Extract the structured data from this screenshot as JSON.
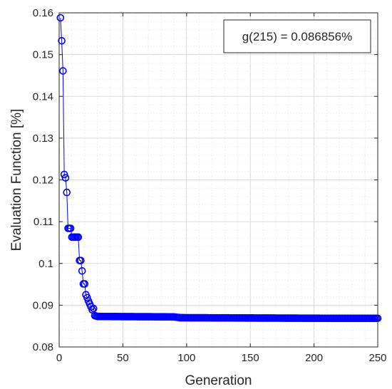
{
  "chart_data": {
    "type": "line",
    "title": "",
    "xlabel": "Generation",
    "ylabel": "Evaluation Function [%]",
    "xlim": [
      0,
      250
    ],
    "ylim": [
      0.08,
      0.16
    ],
    "x_ticks": [
      0,
      50,
      100,
      150,
      200,
      250
    ],
    "y_ticks": [
      0.08,
      0.09,
      0.1,
      0.11,
      0.12,
      0.13,
      0.14,
      0.15,
      0.16
    ],
    "x_tick_labels": [
      "0",
      "50",
      "100",
      "150",
      "200",
      "250"
    ],
    "y_tick_labels": [
      "0.08",
      "0.09",
      "0.1",
      "0.11",
      "0.12",
      "0.13",
      "0.14",
      "0.15",
      "0.16"
    ],
    "grid": true,
    "marker": "circle",
    "line_color": "#0000ff",
    "annotation": "g(215) = 0.086856%",
    "annotation_position": "top-right",
    "series": [
      {
        "key_points": [
          {
            "x": 1,
            "y": 0.1588
          },
          {
            "x": 2,
            "y": 0.1533
          },
          {
            "x": 3,
            "y": 0.1461
          },
          {
            "x": 4,
            "y": 0.1213
          },
          {
            "x": 5,
            "y": 0.1205
          },
          {
            "x": 6,
            "y": 0.117
          },
          {
            "x": 7,
            "y": 0.1084
          },
          {
            "x": 8,
            "y": 0.1084
          },
          {
            "x": 9,
            "y": 0.1084
          },
          {
            "x": 10,
            "y": 0.1063
          },
          {
            "x": 11,
            "y": 0.1063
          },
          {
            "x": 12,
            "y": 0.1063
          },
          {
            "x": 13,
            "y": 0.1063
          },
          {
            "x": 14,
            "y": 0.1063
          },
          {
            "x": 15,
            "y": 0.1063
          },
          {
            "x": 16,
            "y": 0.1007
          },
          {
            "x": 17,
            "y": 0.1007
          },
          {
            "x": 18,
            "y": 0.0982
          },
          {
            "x": 19,
            "y": 0.0951
          },
          {
            "x": 20,
            "y": 0.0951
          },
          {
            "x": 21,
            "y": 0.0925
          },
          {
            "x": 22,
            "y": 0.0918
          },
          {
            "x": 23,
            "y": 0.091
          },
          {
            "x": 24,
            "y": 0.0903
          },
          {
            "x": 25,
            "y": 0.0896
          },
          {
            "x": 26,
            "y": 0.0889
          },
          {
            "x": 27,
            "y": 0.0892
          },
          {
            "x": 28,
            "y": 0.0875
          },
          {
            "x": 30,
            "y": 0.0873
          },
          {
            "x": 90,
            "y": 0.0872
          },
          {
            "x": 95,
            "y": 0.087
          },
          {
            "x": 215,
            "y": 0.086856
          },
          {
            "x": 250,
            "y": 0.086856
          }
        ]
      }
    ]
  }
}
